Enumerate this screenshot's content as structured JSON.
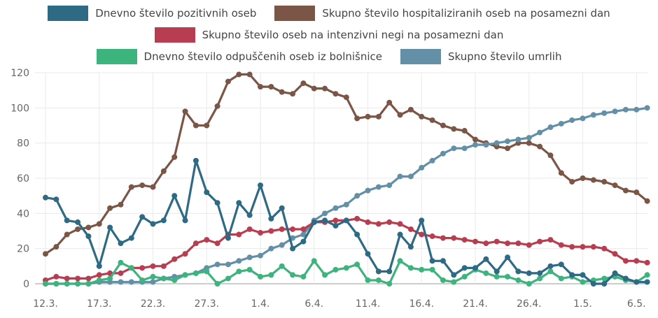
{
  "chart_data": {
    "type": "line",
    "title": "",
    "xlabel": "",
    "ylabel": "",
    "ylim": [
      0,
      120
    ],
    "yticks": [
      0,
      20,
      40,
      60,
      80,
      100,
      120
    ],
    "grid": true,
    "legend_placement": "top",
    "x": [
      "12.3.",
      "13.3.",
      "14.3.",
      "15.3.",
      "16.3.",
      "17.3.",
      "18.3.",
      "19.3.",
      "20.3.",
      "21.3.",
      "22.3.",
      "23.3.",
      "24.3.",
      "25.3.",
      "26.3.",
      "27.3.",
      "28.3.",
      "29.3.",
      "30.3.",
      "31.3.",
      "1.4.",
      "2.4.",
      "3.4.",
      "4.4.",
      "5.4.",
      "6.4.",
      "7.4.",
      "8.4.",
      "9.4.",
      "10.4.",
      "11.4.",
      "12.4.",
      "13.4.",
      "14.4.",
      "15.4.",
      "16.4.",
      "17.4.",
      "18.4.",
      "19.4.",
      "20.4.",
      "21.4.",
      "22.4.",
      "23.4.",
      "24.4.",
      "25.4.",
      "26.4.",
      "27.4.",
      "28.4.",
      "29.4.",
      "30.4.",
      "1.5.",
      "2.5.",
      "3.5.",
      "4.5.",
      "5.5.",
      "6.5.",
      "7.5."
    ],
    "xtick_labels": [
      "12.3.",
      "17.3.",
      "22.3.",
      "27.3.",
      "1.4.",
      "6.4.",
      "11.4.",
      "16.4.",
      "21.4.",
      "26.4.",
      "1.5.",
      "6.5."
    ],
    "series": [
      {
        "name": "Skupno število hospitaliziranih oseb na posamezni dan",
        "color": "#7b5546",
        "values": [
          17,
          21,
          28,
          31,
          32,
          34,
          43,
          45,
          55,
          56,
          55,
          64,
          72,
          98,
          90,
          90,
          101,
          115,
          119,
          119,
          112,
          112,
          109,
          108,
          114,
          111,
          111,
          108,
          106,
          94,
          95,
          95,
          103,
          96,
          99,
          95,
          93,
          90,
          88,
          87,
          82,
          80,
          78,
          77,
          80,
          80,
          78,
          73,
          63,
          58,
          60,
          59,
          58,
          56,
          53,
          52,
          47
        ]
      },
      {
        "name": "Skupno število umrlih",
        "color": "#6390a6",
        "values": [
          0,
          0,
          0,
          0,
          0,
          1,
          1,
          1,
          1,
          1,
          1,
          3,
          4,
          5,
          6,
          9,
          11,
          11,
          13,
          15,
          16,
          20,
          22,
          26,
          28,
          36,
          40,
          43,
          45,
          50,
          53,
          55,
          56,
          61,
          61,
          66,
          70,
          74,
          77,
          77,
          79,
          79,
          80,
          81,
          82,
          83,
          86,
          89,
          91,
          93,
          94,
          96,
          97,
          98,
          99,
          99,
          100
        ]
      },
      {
        "name": "Skupno število oseb na intenzivni negi na posamezni dan",
        "color": "#b83d51",
        "values": [
          2,
          4,
          3,
          3,
          3,
          5,
          6,
          6,
          9,
          9,
          10,
          10,
          14,
          17,
          23,
          25,
          23,
          28,
          28,
          31,
          29,
          30,
          31,
          31,
          31,
          35,
          35,
          36,
          36,
          37,
          35,
          34,
          35,
          34,
          31,
          28,
          27,
          26,
          26,
          25,
          24,
          23,
          24,
          23,
          23,
          22,
          24,
          25,
          22,
          21,
          21,
          21,
          20,
          17,
          13,
          13,
          12
        ]
      },
      {
        "name": "Dnevno število odpuščenih oseb iz bolnišnice",
        "color": "#3db37e",
        "values": [
          0,
          0,
          0,
          0,
          0,
          2,
          3,
          12,
          9,
          2,
          4,
          3,
          2,
          5,
          6,
          7,
          0,
          3,
          7,
          8,
          4,
          5,
          10,
          5,
          4,
          13,
          5,
          8,
          9,
          11,
          2,
          2,
          0,
          13,
          9,
          8,
          8,
          2,
          1,
          4,
          8,
          6,
          4,
          4,
          2,
          0,
          3,
          7,
          3,
          4,
          1,
          2,
          3,
          4,
          2,
          1,
          5
        ]
      },
      {
        "name": "Dnevno število pozitivnih oseb",
        "color": "#2e6a84",
        "values": [
          49,
          48,
          36,
          35,
          27,
          10,
          32,
          23,
          26,
          38,
          34,
          36,
          50,
          36,
          70,
          52,
          46,
          26,
          46,
          39,
          56,
          37,
          43,
          20,
          24,
          35,
          36,
          33,
          36,
          28,
          17,
          7,
          7,
          28,
          21,
          36,
          13,
          13,
          5,
          9,
          9,
          14,
          7,
          15,
          7,
          6,
          6,
          10,
          11,
          5,
          5,
          0,
          0,
          6,
          3,
          1,
          1
        ]
      }
    ]
  },
  "legend": {
    "rows": [
      [
        {
          "label": "Dnevno število pozitivnih oseb",
          "color": "#2e6a84"
        },
        {
          "label": "Skupno število hospitaliziranih oseb na posamezni dan",
          "color": "#7b5546"
        }
      ],
      [
        {
          "label": "Skupno število oseb na intenzivni negi na posamezni dan",
          "color": "#b83d51"
        }
      ],
      [
        {
          "label": "Dnevno število odpuščenih oseb iz bolnišnice",
          "color": "#3db37e"
        },
        {
          "label": "Skupno število umrlih",
          "color": "#6390a6"
        }
      ]
    ]
  }
}
